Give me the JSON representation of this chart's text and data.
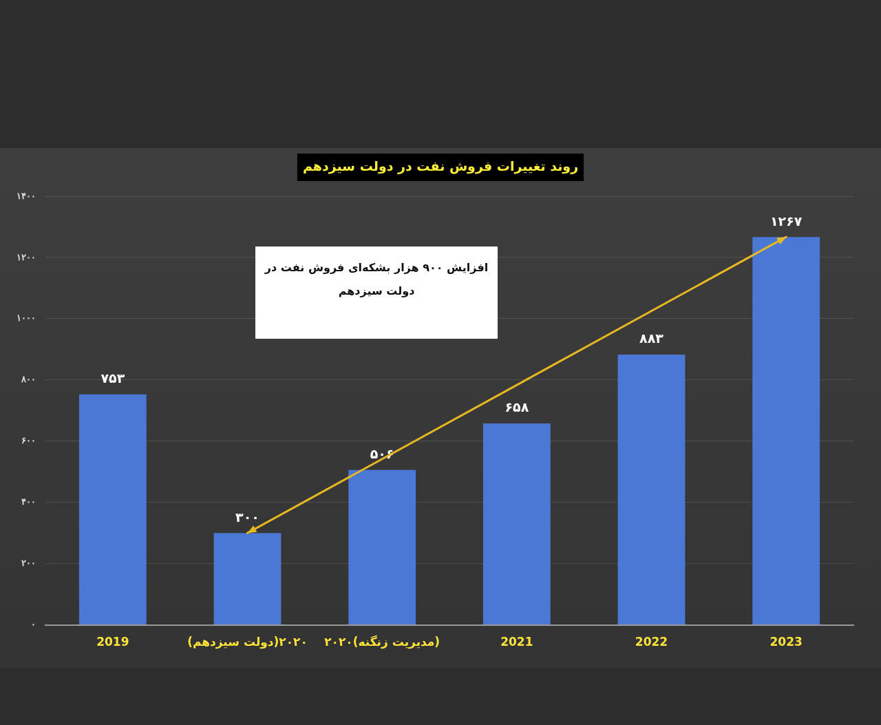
{
  "chart_data": {
    "type": "bar",
    "title": "روند تغییرات فروش نفت در دولت سیزدهم",
    "categories": [
      "2019",
      "(دولت سیزدهم)۲۰۲۰",
      "۲۰۲۰(مدیریت زنگنه)",
      "2021",
      "2022",
      "2023"
    ],
    "values": [
      753,
      300,
      506,
      658,
      883,
      1267
    ],
    "value_labels": [
      "۷۵۳",
      "۳۰۰",
      "۵۰۶",
      "۶۵۸",
      "۸۸۳",
      "۱۲۶۷"
    ],
    "color": "#4a78d4",
    "ylim": [
      0,
      1400
    ],
    "yticks": [
      {
        "value": 0,
        "label": "۰"
      },
      {
        "value": 200,
        "label": "۲۰۰"
      },
      {
        "value": 400,
        "label": "۴۰۰"
      },
      {
        "value": 600,
        "label": "۶۰۰"
      },
      {
        "value": 800,
        "label": "۸۰۰"
      },
      {
        "value": 1000,
        "label": "۱۰۰۰"
      },
      {
        "value": 1200,
        "label": "۱۲۰۰"
      },
      {
        "value": 1400,
        "label": "۱۴۰۰"
      }
    ],
    "grid": "y",
    "annotations": [
      "افزایش ۹۰۰ هزار بشکه‌ای فروش نفت در دولت سیزدهم"
    ]
  }
}
